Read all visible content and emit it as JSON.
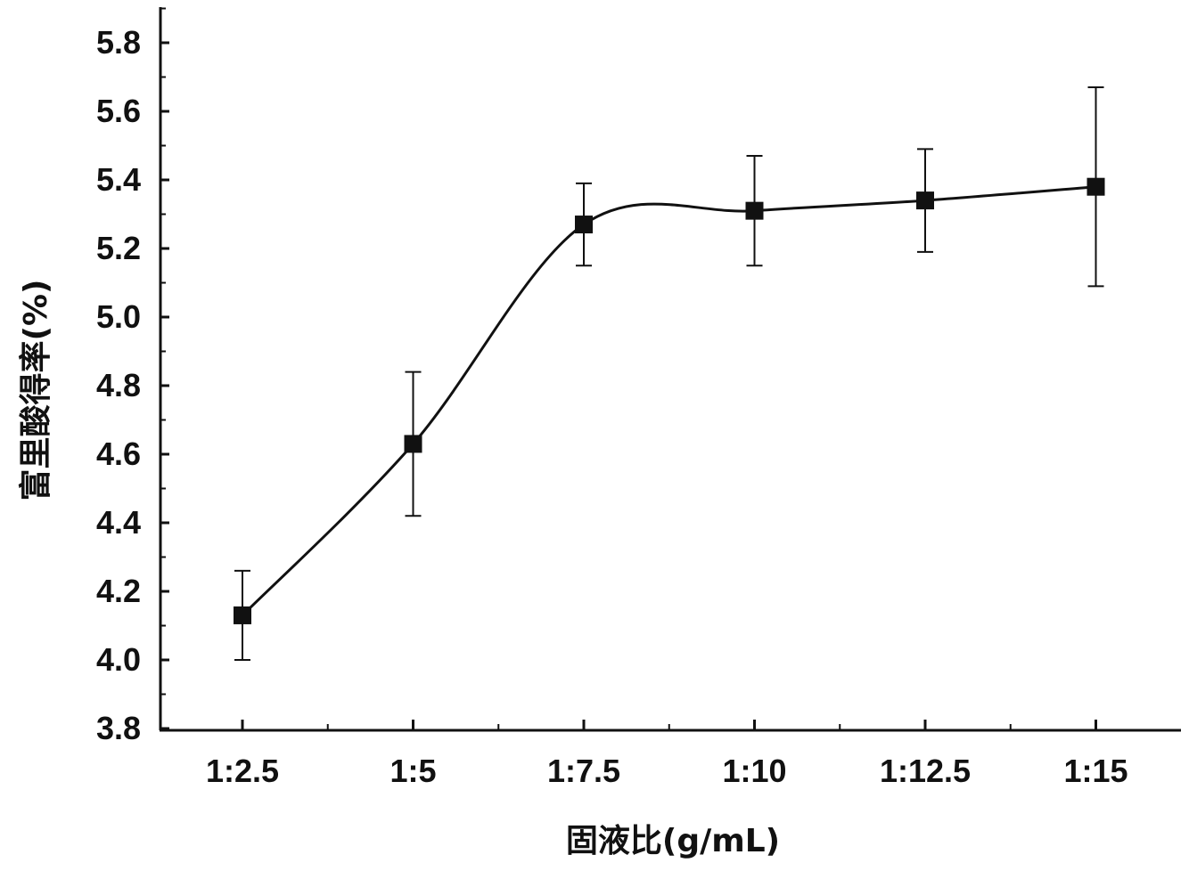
{
  "chart_data": {
    "type": "line",
    "xlabel": "固液比(g/mL)",
    "ylabel": "富里酸得率(%)",
    "categories": [
      "1:2.5",
      "1:5",
      "1:7.5",
      "1:10",
      "1:12.5",
      "1:15"
    ],
    "ylim": [
      3.8,
      5.9
    ],
    "y_ticks": [
      "3.8",
      "4.0",
      "4.2",
      "4.4",
      "4.6",
      "4.8",
      "5.0",
      "5.2",
      "5.4",
      "5.6",
      "5.8"
    ],
    "series": [
      {
        "values": [
          4.13,
          4.63,
          5.27,
          5.31,
          5.34,
          5.38
        ],
        "error_low": [
          4.0,
          4.42,
          5.15,
          5.15,
          5.19,
          5.09
        ],
        "error_high": [
          4.26,
          4.84,
          5.39,
          5.47,
          5.49,
          5.67
        ],
        "marker": "square",
        "color": "#111111"
      }
    ],
    "grid": false,
    "legend": "none",
    "smooth_line": true
  }
}
